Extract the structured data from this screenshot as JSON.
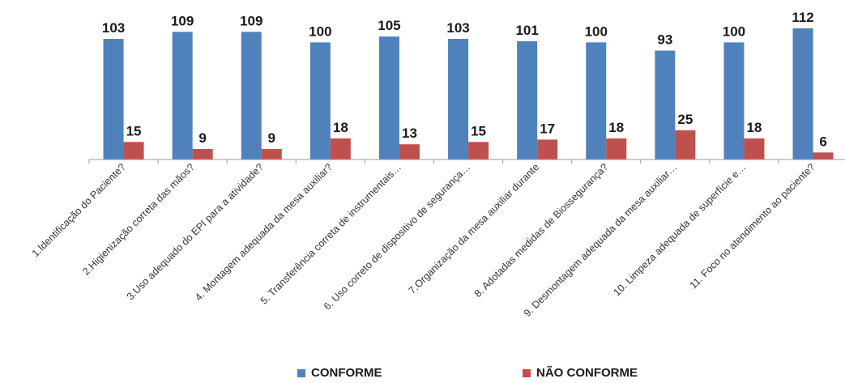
{
  "chart_data": {
    "type": "bar",
    "categories": [
      "1.Identificação do Paciente?",
      "2.Higienização correta das mãos?",
      "3.Uso adequado do EPI para a atividade?",
      "4. Montagem adequada da mesa auxiliar?",
      "5. Transferência correta de instrumentais…",
      "6. Uso correto de dispositivo de segurança…",
      "7.Organização da mesa auxiliar durante",
      "8. Adotadas medidas de Biossegurança?",
      "9. Desmontagem adequada da mesa auxiliar…",
      "10. Limpeza adequada de superfície e…",
      "11. Foco no atendimento ao paciente?"
    ],
    "series": [
      {
        "name": "CONFORME",
        "color": "#4F81BD",
        "values": [
          103,
          109,
          109,
          100,
          105,
          103,
          101,
          100,
          93,
          100,
          112
        ]
      },
      {
        "name": "NÃO CONFORME",
        "color": "#C0504D",
        "values": [
          15,
          9,
          9,
          18,
          13,
          15,
          17,
          18,
          25,
          18,
          6
        ]
      }
    ],
    "ylim": [
      0,
      112
    ],
    "grid": false,
    "legend_position": "bottom",
    "data_labels": true
  }
}
